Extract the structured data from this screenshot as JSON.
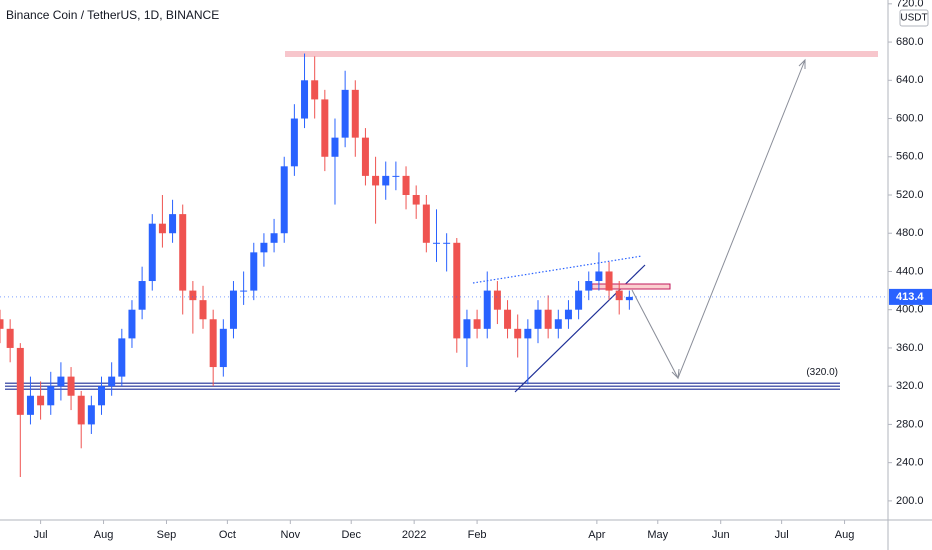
{
  "chart_data": {
    "type": "candlestick",
    "title": "Binance Coin / TetherUS, 1D, BINANCE",
    "currency": "USDT",
    "up_color": "#2962ff",
    "down_color": "#ef5350",
    "x": [
      -20,
      -15,
      -10,
      -5,
      0,
      5,
      10,
      15,
      20,
      25,
      30,
      35,
      40,
      45,
      50,
      55,
      60,
      65,
      70,
      75,
      80,
      85,
      90,
      95,
      100,
      105,
      110,
      115,
      120,
      125,
      130,
      135,
      140,
      145,
      150,
      155,
      160,
      165,
      170,
      175,
      180,
      185,
      190,
      195,
      200,
      205,
      210,
      215,
      220,
      225,
      230,
      235,
      240,
      245,
      250,
      255,
      260,
      265,
      270,
      275,
      280,
      285,
      290
    ],
    "open": [
      390,
      380,
      360,
      290,
      310,
      300,
      320,
      330,
      310,
      280,
      300,
      320,
      330,
      370,
      400,
      430,
      490,
      480,
      500,
      420,
      410,
      390,
      340,
      380,
      420,
      420,
      460,
      470,
      480,
      550,
      600,
      640,
      620,
      560,
      580,
      630,
      580,
      540,
      530,
      540,
      540,
      520,
      510,
      470,
      470,
      470,
      370,
      390,
      380,
      420,
      400,
      380,
      370,
      380,
      400,
      380,
      390,
      400,
      420,
      430,
      440,
      420,
      410
    ],
    "high": [
      400,
      390,
      365,
      330,
      325,
      335,
      345,
      340,
      315,
      310,
      330,
      345,
      380,
      410,
      445,
      500,
      520,
      515,
      510,
      430,
      425,
      400,
      390,
      430,
      440,
      470,
      480,
      495,
      560,
      615,
      668,
      665,
      630,
      600,
      650,
      640,
      590,
      560,
      555,
      555,
      550,
      530,
      520,
      505,
      480,
      475,
      400,
      400,
      440,
      430,
      410,
      395,
      390,
      410,
      415,
      400,
      410,
      430,
      440,
      460,
      450,
      430,
      420
    ],
    "low": [
      365,
      345,
      225,
      280,
      285,
      290,
      305,
      295,
      255,
      270,
      290,
      310,
      320,
      360,
      390,
      420,
      465,
      470,
      395,
      375,
      380,
      320,
      330,
      370,
      405,
      410,
      445,
      460,
      470,
      540,
      590,
      600,
      545,
      510,
      570,
      560,
      530,
      490,
      515,
      525,
      505,
      495,
      460,
      450,
      440,
      355,
      340,
      370,
      370,
      385,
      370,
      350,
      322,
      365,
      370,
      370,
      380,
      390,
      410,
      420,
      410,
      395,
      400
    ],
    "close": [
      380,
      360,
      290,
      310,
      300,
      320,
      330,
      310,
      280,
      300,
      320,
      330,
      370,
      400,
      430,
      490,
      480,
      500,
      420,
      410,
      390,
      340,
      380,
      420,
      420,
      460,
      470,
      480,
      550,
      600,
      640,
      620,
      560,
      580,
      630,
      580,
      540,
      530,
      540,
      540,
      520,
      510,
      470,
      470,
      470,
      370,
      390,
      380,
      420,
      400,
      380,
      370,
      380,
      400,
      380,
      390,
      400,
      420,
      430,
      440,
      420,
      410,
      413.4
    ],
    "last_price": 413.4,
    "support_level": {
      "value": 320,
      "label": "(320.0)"
    },
    "xlim": [
      -20,
      417.4
    ],
    "xticks": [
      {
        "value": 0,
        "label": "Jul"
      },
      {
        "value": 31,
        "label": "Aug"
      },
      {
        "value": 62,
        "label": "Sep"
      },
      {
        "value": 92,
        "label": "Oct"
      },
      {
        "value": 123,
        "label": "Nov"
      },
      {
        "value": 153,
        "label": "Dec"
      },
      {
        "value": 184,
        "label": "2022"
      },
      {
        "value": 215,
        "label": "Feb"
      },
      {
        "value": 274,
        "label": "Apr"
      },
      {
        "value": 304,
        "label": "May"
      },
      {
        "value": 335,
        "label": "Jun"
      },
      {
        "value": 365,
        "label": "Jul"
      },
      {
        "value": 396,
        "label": "Aug"
      }
    ],
    "ylim": [
      180,
      724
    ],
    "yticks": [
      {
        "value": 200,
        "label": "200.0"
      },
      {
        "value": 240,
        "label": "240.0"
      },
      {
        "value": 280,
        "label": "280.0"
      },
      {
        "value": 320,
        "label": "320.0"
      },
      {
        "value": 360,
        "label": "360.0"
      },
      {
        "value": 400,
        "label": "400.0"
      },
      {
        "value": 440,
        "label": "440.0"
      },
      {
        "value": 480,
        "label": "480.0"
      },
      {
        "value": 520,
        "label": "520.0"
      },
      {
        "value": 560,
        "label": "560.0"
      },
      {
        "value": 600,
        "label": "600.0"
      },
      {
        "value": 640,
        "label": "640.0"
      },
      {
        "value": 680,
        "label": "680.0"
      },
      {
        "value": 720,
        "label": "720.0"
      }
    ]
  }
}
